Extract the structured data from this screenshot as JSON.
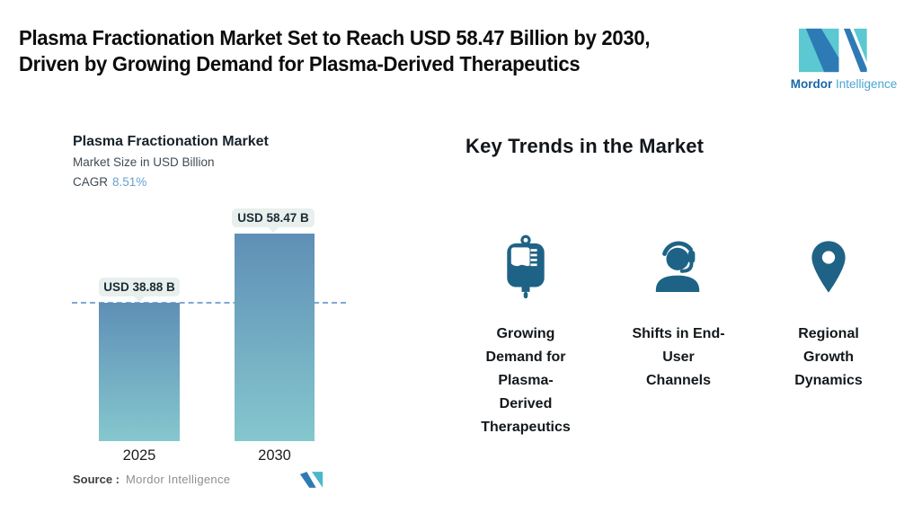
{
  "header": {
    "title_lines": [
      "Plasma Fractionation Market Set to Reach USD 58.47 Billion by 2030,",
      "Driven by Growing Demand for Plasma-Derived Therapeutics"
    ],
    "logo": {
      "brand_bold": "Mordor",
      "brand_light": "Intelligence"
    }
  },
  "chart": {
    "title": "Plasma Fractionation Market",
    "subtitle": "Market Size in USD Billion",
    "cagr_label": "CAGR",
    "cagr_value": "8.51%"
  },
  "chart_data": {
    "type": "bar",
    "title": "Plasma Fractionation Market",
    "subtitle": "Market Size in USD Billion",
    "cagr": "8.51%",
    "categories": [
      "2025",
      "2030"
    ],
    "values": [
      38.88,
      58.47
    ],
    "value_labels": [
      "USD 38.88 B",
      "USD 58.47 B"
    ],
    "unit": "USD Billion",
    "ylim": [
      0,
      58.47
    ],
    "grid": false,
    "legend": "none",
    "bar_gradient_top": "#5f8fb6",
    "bar_gradient_bottom": "#85c7ce",
    "reference_line": {
      "y": 38.88,
      "style": "dashed",
      "color": "#7fa8d6"
    }
  },
  "source": {
    "label": "Source :",
    "value": "Mordor Intelligence"
  },
  "trends": {
    "heading": "Key Trends in the Market",
    "items": [
      {
        "icon": "blood-bag-icon",
        "label_lines": [
          "Growing",
          "Demand for",
          "Plasma-",
          "Derived",
          "Therapeutics"
        ]
      },
      {
        "icon": "support-agent-icon",
        "label_lines": [
          "Shifts in End-",
          "User",
          "Channels"
        ]
      },
      {
        "icon": "location-pin-icon",
        "label_lines": [
          "Regional",
          "Growth",
          "Dynamics"
        ]
      }
    ]
  },
  "colors": {
    "icon_teal_blue": "#1e6386",
    "logo_dark_blue": "#2e7ab5",
    "logo_teal": "#5bc8d2",
    "callout_bg": "#e8f0ee",
    "cagr_value_blue": "#68a2cc"
  }
}
